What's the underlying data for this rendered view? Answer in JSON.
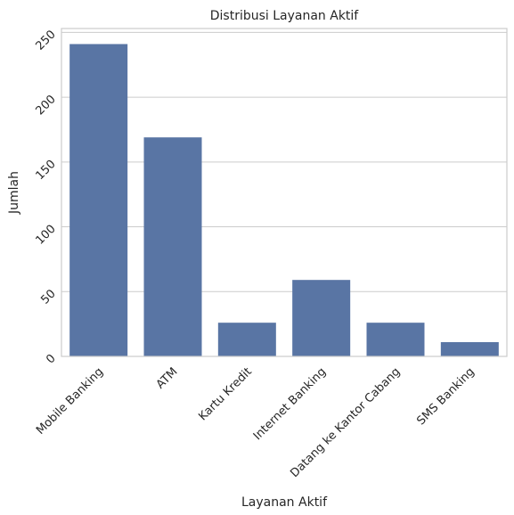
{
  "chart_data": {
    "type": "bar",
    "title": "Distribusi Layanan Aktif",
    "xlabel": "Layanan Aktif",
    "ylabel": "Jumlah",
    "categories": [
      "Mobile Banking",
      "ATM",
      "Kartu Kredit",
      "Internet Banking",
      "Datang ke Kantor Cabang",
      "SMS Banking"
    ],
    "values": [
      241,
      169,
      26,
      59,
      26,
      11
    ],
    "ylim": [
      0,
      253
    ],
    "yticks": [
      "0",
      "50",
      "100",
      "150",
      "200",
      "250"
    ],
    "grid": "horizontal",
    "bar_color": "#5975a4",
    "grid_color": "#cccccc",
    "frame_color": "#cccccc"
  }
}
